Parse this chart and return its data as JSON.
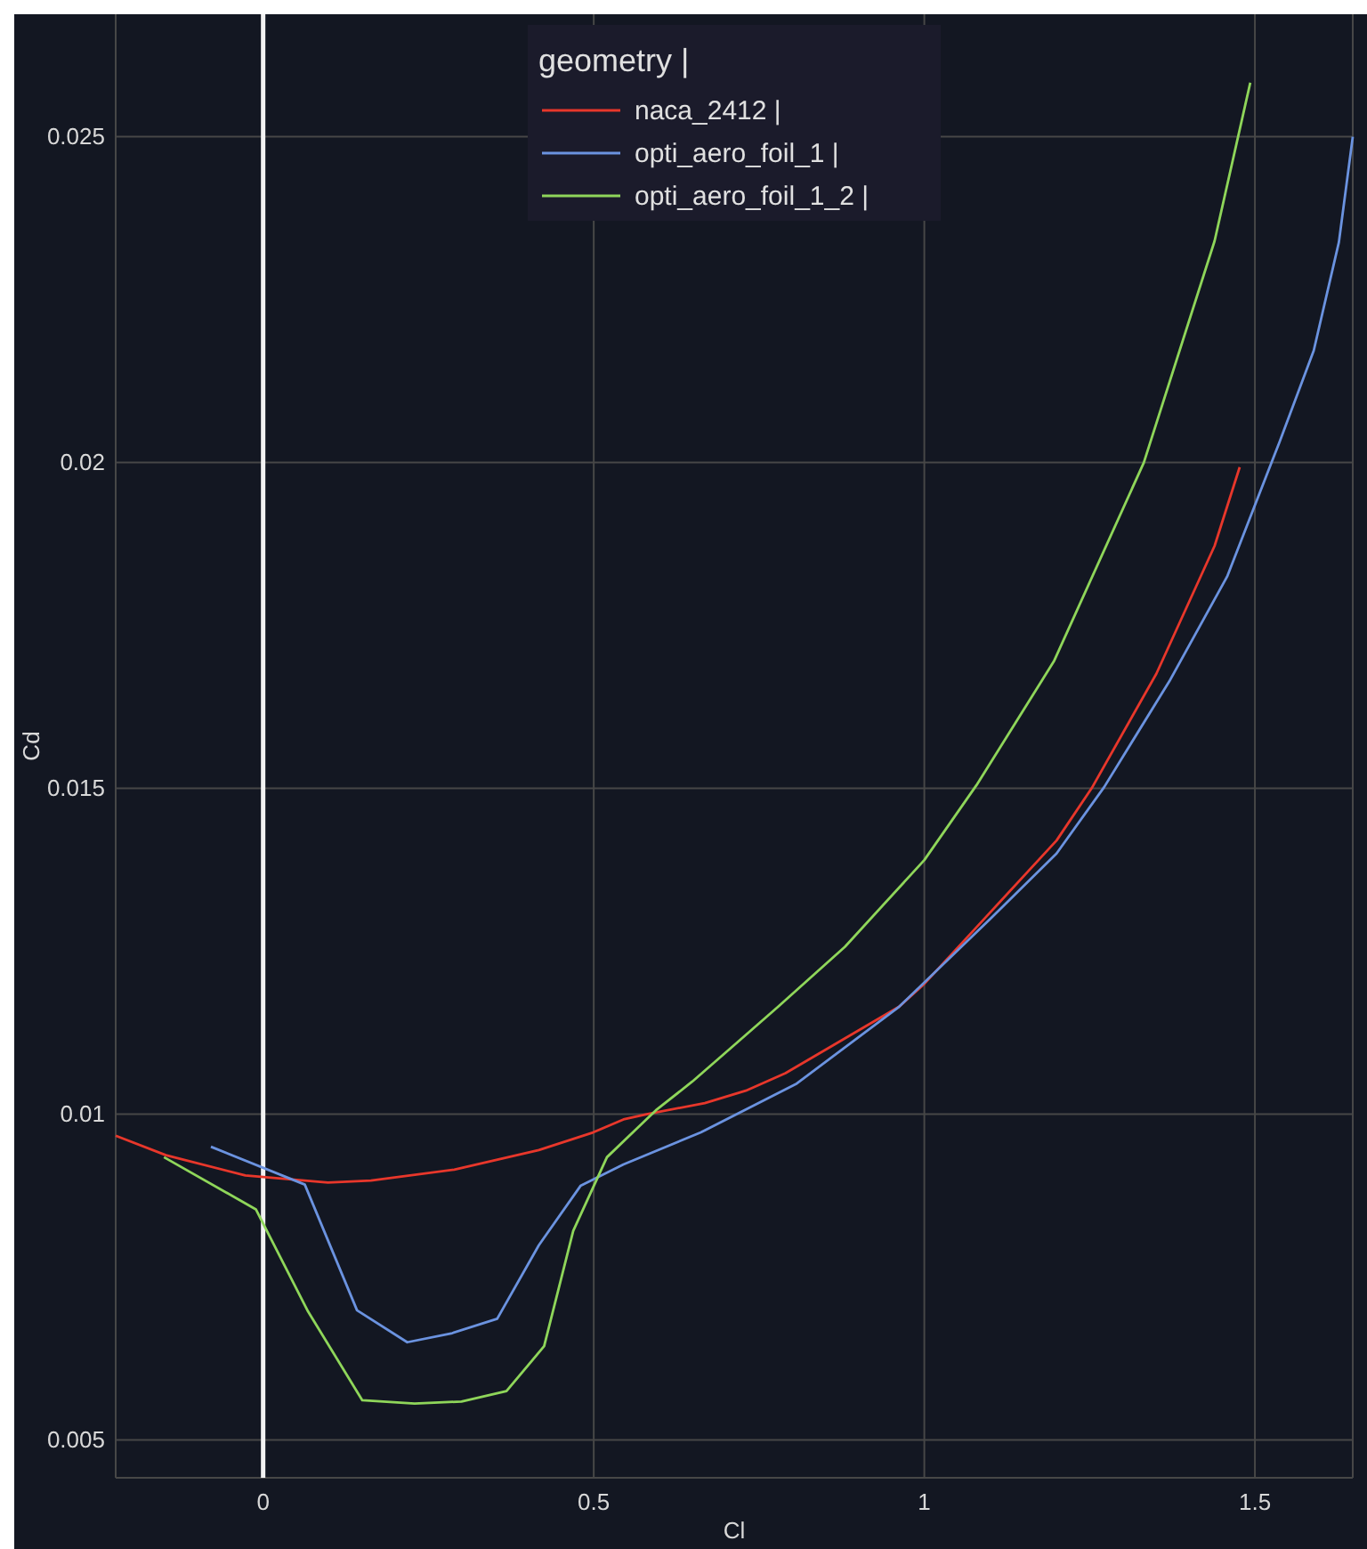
{
  "chart_data": {
    "type": "line",
    "xlabel": "Cl",
    "ylabel": "Cd",
    "legend_title": "geometry |",
    "xlim": [
      -0.223,
      1.648
    ],
    "ylim": [
      0.00442,
      0.02688
    ],
    "xticks": [
      0,
      0.5,
      1,
      1.5
    ],
    "yticks": [
      0.005,
      0.01,
      0.015,
      0.02,
      0.025
    ],
    "grid": true,
    "legend": "top",
    "ref_lines": [
      {
        "axis": "x",
        "value": 0,
        "color": "#f2f2f2"
      }
    ],
    "series": [
      {
        "name": "naca_2412 |",
        "color": "#e8372b",
        "x": [
          -0.223,
          -0.147,
          -0.027,
          0.098,
          0.163,
          0.289,
          0.417,
          0.499,
          0.545,
          0.58,
          0.668,
          0.73,
          0.79,
          0.962,
          1.0,
          1.1,
          1.2,
          1.253,
          1.351,
          1.439,
          1.477
        ],
        "values": [
          0.00967,
          0.00937,
          0.00906,
          0.00895,
          0.00898,
          0.00915,
          0.00945,
          0.00972,
          0.00992,
          0.01,
          0.01017,
          0.01036,
          0.01063,
          0.01165,
          0.012,
          0.0131,
          0.0142,
          0.015,
          0.01676,
          0.01872,
          0.01993
        ]
      },
      {
        "name": "opti_aero_foil_1 |",
        "color": "#6b93e0",
        "x": [
          -0.079,
          0.063,
          0.142,
          0.218,
          0.286,
          0.354,
          0.417,
          0.48,
          0.545,
          0.662,
          0.807,
          0.962,
          1.1,
          1.2,
          1.272,
          1.371,
          1.458,
          1.537,
          1.589,
          1.627,
          1.648
        ],
        "values": [
          0.0095,
          0.00892,
          0.00699,
          0.0065,
          0.00664,
          0.00686,
          0.00799,
          0.0089,
          0.00923,
          0.00972,
          0.01047,
          0.01165,
          0.013,
          0.014,
          0.01502,
          0.01665,
          0.01825,
          0.02031,
          0.02172,
          0.02338,
          0.025
        ]
      },
      {
        "name": "opti_aero_foil_1_2 |",
        "color": "#8fd65a",
        "x": [
          -0.15,
          -0.011,
          0.068,
          0.15,
          0.229,
          0.3,
          0.368,
          0.425,
          0.469,
          0.52,
          0.594,
          0.649,
          0.717,
          0.779,
          0.88,
          1.0,
          1.079,
          1.196,
          1.332,
          1.439,
          1.493
        ],
        "values": [
          0.00934,
          0.00854,
          0.00697,
          0.00561,
          0.00556,
          0.00559,
          0.00575,
          0.00644,
          0.00821,
          0.00934,
          0.01006,
          0.0105,
          0.0111,
          0.01165,
          0.01257,
          0.0139,
          0.01505,
          0.01695,
          0.02,
          0.0234,
          0.02583
        ]
      }
    ]
  }
}
